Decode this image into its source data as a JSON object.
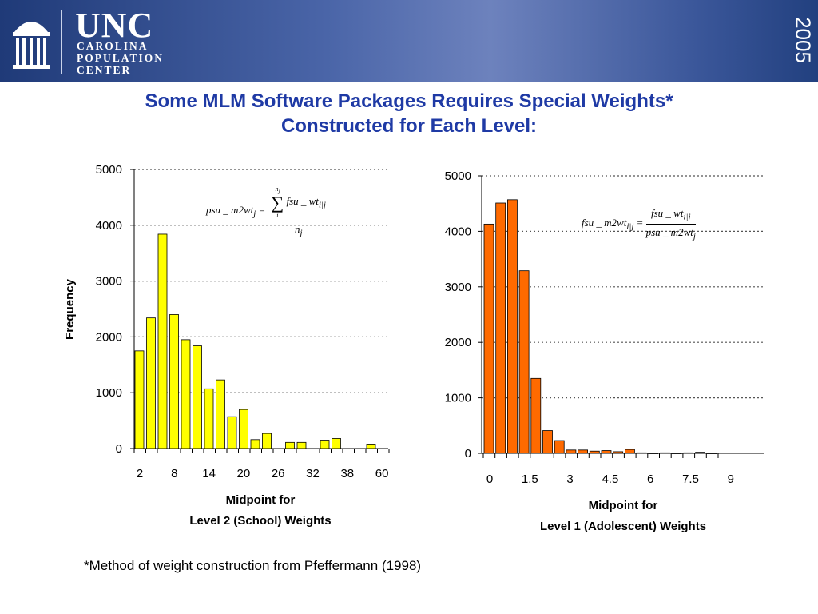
{
  "header": {
    "org_short": "UNC",
    "org_lines": [
      "CAROLINA",
      "POPULATION",
      "CENTER"
    ],
    "year": "2005",
    "bg_color": "#3b579a"
  },
  "slide": {
    "title_line1": "Some MLM Software Packages Requires Special Weights*",
    "title_line2": "Constructed for Each Level:",
    "footnote": "*Method of weight construction from Pfeffermann (1998)"
  },
  "formulas": {
    "left": {
      "lhs": "psu _ m2wt",
      "lhs_sub": "j",
      "sum_upper": "n",
      "sum_upper_sub": "j",
      "sum_lower": "i",
      "numerator": "fsu _ wt",
      "numerator_sub": "i|j",
      "denominator": "n",
      "denominator_sub": "j"
    },
    "right": {
      "lhs": "fsu _ m2wt",
      "lhs_sub": "i|j",
      "numerator": "fsu _ wt",
      "numerator_sub": "i|j",
      "denominator": "psu _ m2wt",
      "denominator_sub": "j"
    }
  },
  "chart_data": [
    {
      "type": "bar",
      "ylabel": "Frequency",
      "xlabel_line1": "Midpoint for",
      "xlabel_line2": "Level 2 (School) Weights",
      "ylim": [
        0,
        5000
      ],
      "yticks": [
        0,
        1000,
        2000,
        3000,
        4000,
        5000
      ],
      "xtick_labels": [
        "2",
        "8",
        "14",
        "20",
        "26",
        "32",
        "38",
        "60"
      ],
      "values": [
        1750,
        2340,
        3840,
        2400,
        1950,
        1840,
        1070,
        1230,
        570,
        700,
        160,
        270,
        0,
        110,
        110,
        0,
        150,
        180,
        0,
        0,
        80,
        0
      ],
      "bar_color": "#ffff00",
      "grid": "horizontal dotted",
      "legend": "none"
    },
    {
      "type": "bar",
      "ylabel": "",
      "xlabel_line1": "Midpoint for",
      "xlabel_line2": "Level 1 (Adolescent) Weights",
      "ylim": [
        0,
        5000
      ],
      "yticks": [
        0,
        1000,
        2000,
        3000,
        4000,
        5000
      ],
      "xtick_labels": [
        "0",
        "1.5",
        "3",
        "4.5",
        "6",
        "7.5",
        "9"
      ],
      "values": [
        4130,
        4510,
        4570,
        3290,
        1350,
        410,
        230,
        60,
        60,
        40,
        50,
        30,
        70,
        10,
        0,
        10,
        0,
        10,
        20,
        0
      ],
      "bar_color": "#ff6a00",
      "grid": "horizontal dotted",
      "legend": "none"
    }
  ]
}
